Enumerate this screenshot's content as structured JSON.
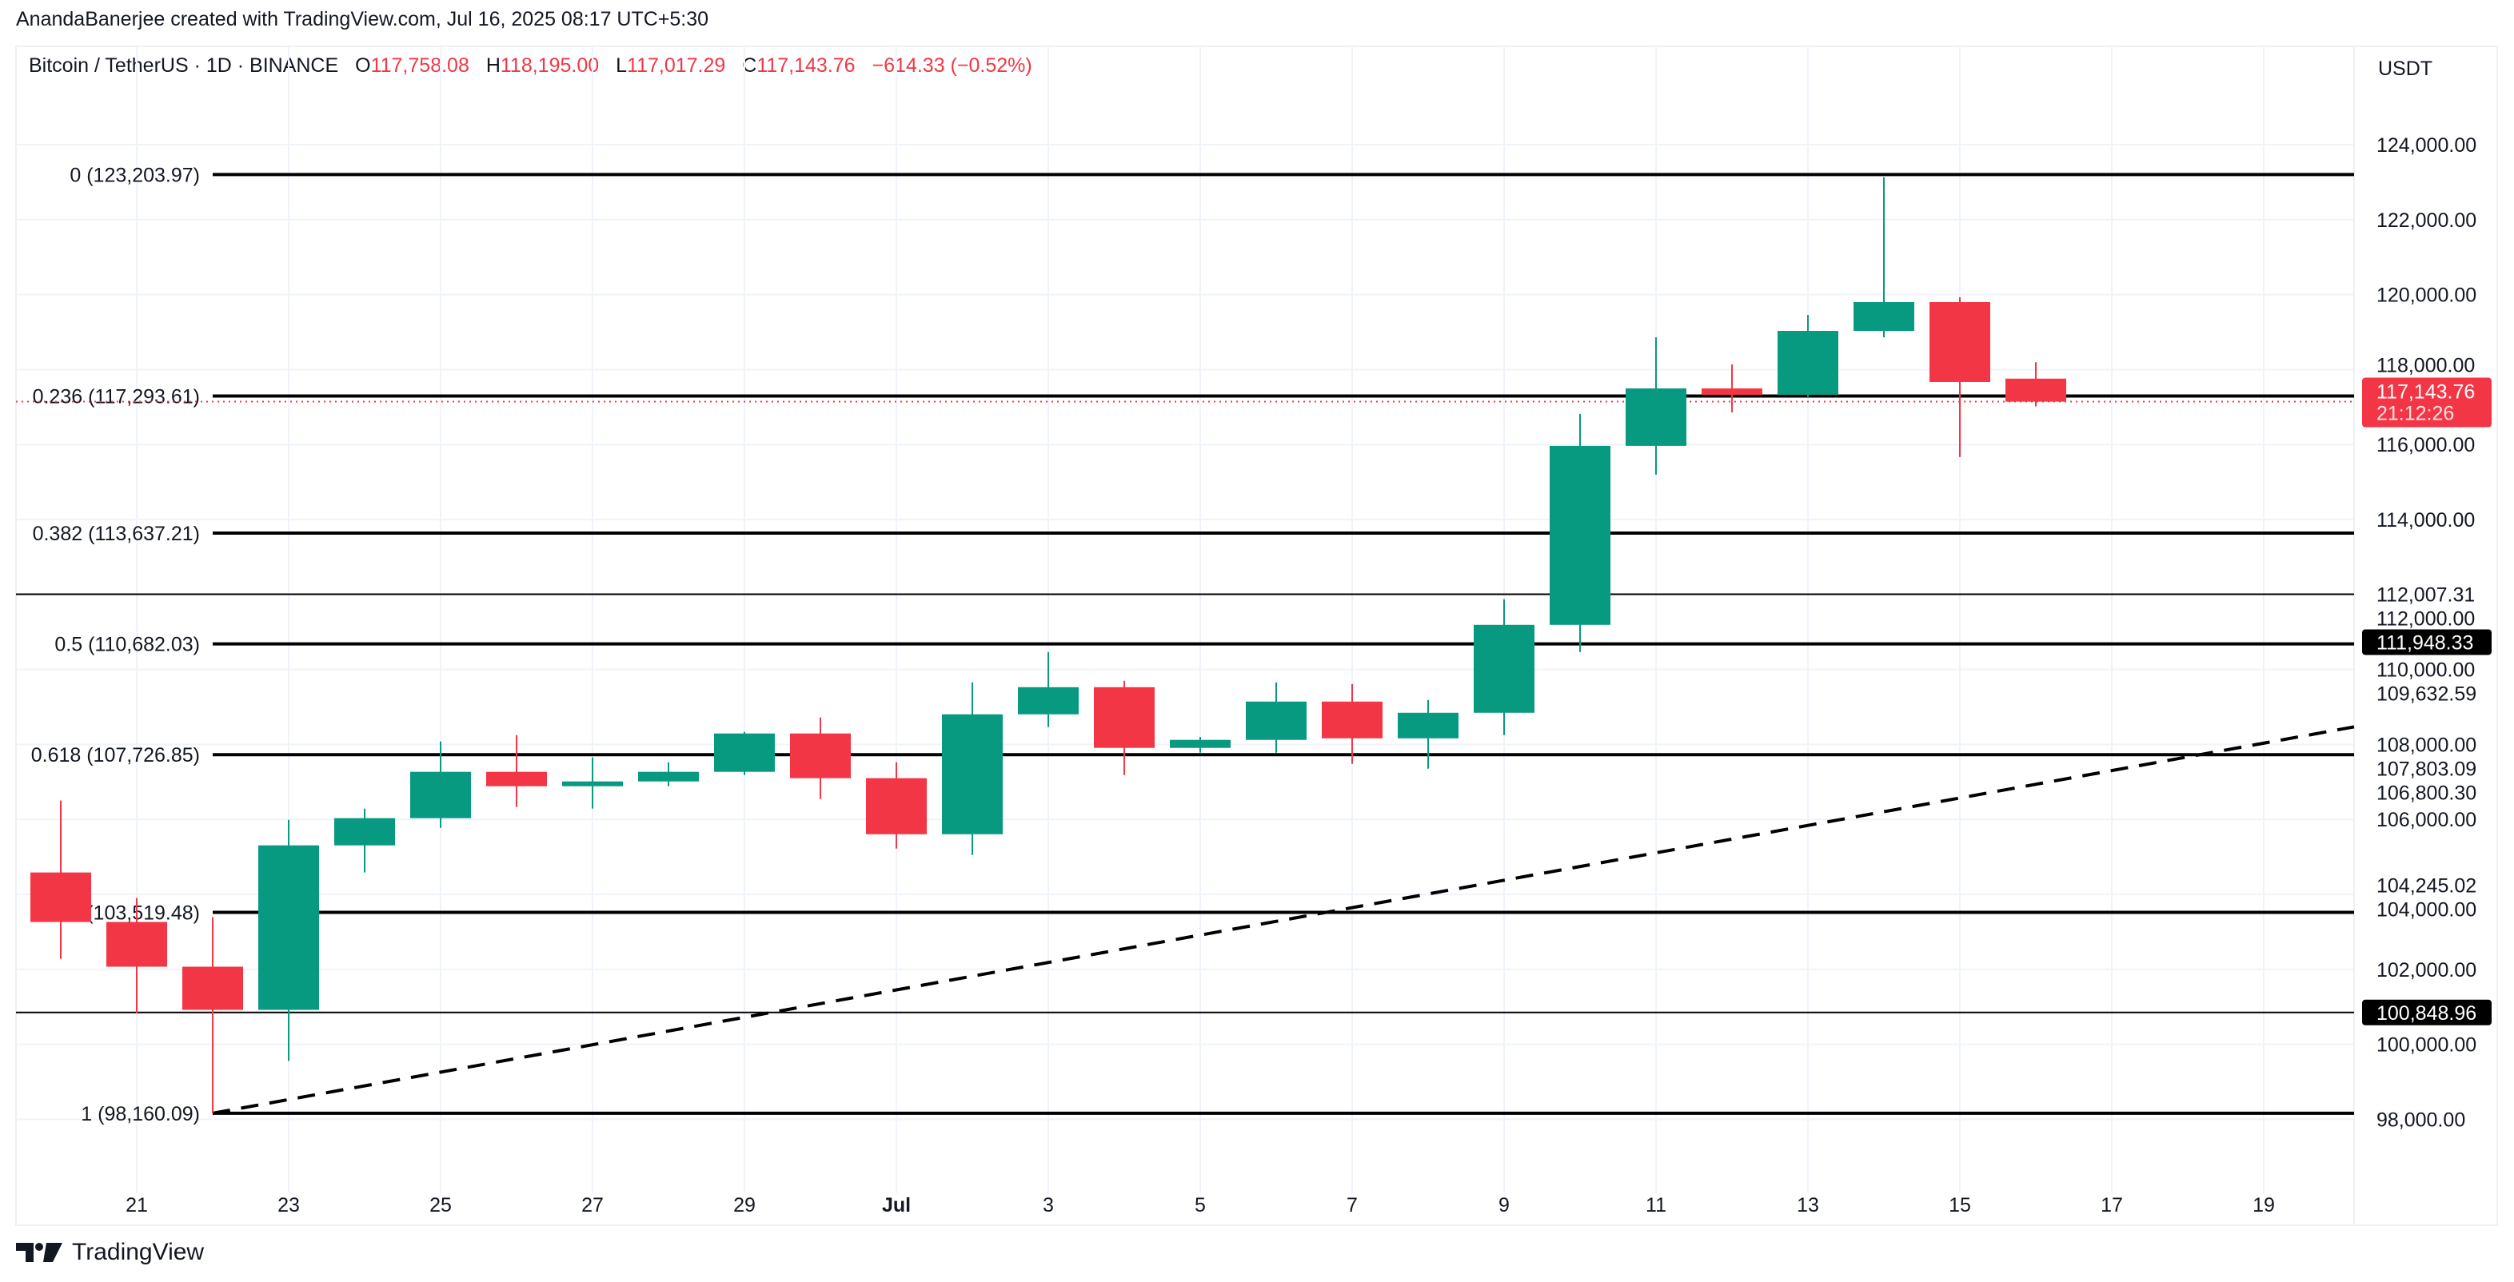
{
  "credit": "AnandaBanerjee created with TradingView.com, Jul 16, 2025 08:17 UTC+5:30",
  "legend": {
    "symbol": "Bitcoin / TetherUS · 1D · BINANCE",
    "open_label": "O",
    "open": "117,758.08",
    "high_label": "H",
    "high": "118,195.00",
    "low_label": "L",
    "low": "117,017.29",
    "close_label": "C",
    "close": "117,143.76",
    "change": "−614.33 (−0.52%)"
  },
  "currency": "USDT",
  "logo_text": "TradingView",
  "colors": {
    "up": "#089981",
    "down": "#f23645",
    "grid": "#f0f3fa",
    "line": "#000000"
  },
  "chart_data": {
    "type": "candlestick",
    "title": "",
    "ylim": [
      96500,
      126500
    ],
    "y_ticks": [
      98000,
      100000,
      102000,
      104000,
      106000,
      108000,
      110000,
      112000,
      114000,
      116000,
      118000,
      120000,
      122000,
      124000
    ],
    "x_ticks": [
      {
        "date": "2025-06-21",
        "label": "21"
      },
      {
        "date": "2025-06-23",
        "label": "23"
      },
      {
        "date": "2025-06-25",
        "label": "25"
      },
      {
        "date": "2025-06-27",
        "label": "27"
      },
      {
        "date": "2025-06-29",
        "label": "29"
      },
      {
        "date": "2025-07-01",
        "label": "Jul"
      },
      {
        "date": "2025-07-03",
        "label": "3"
      },
      {
        "date": "2025-07-05",
        "label": "5"
      },
      {
        "date": "2025-07-07",
        "label": "7"
      },
      {
        "date": "2025-07-09",
        "label": "9"
      },
      {
        "date": "2025-07-11",
        "label": "11"
      },
      {
        "date": "2025-07-13",
        "label": "13"
      },
      {
        "date": "2025-07-15",
        "label": "15"
      },
      {
        "date": "2025-07-17",
        "label": "17"
      },
      {
        "date": "2025-07-19",
        "label": "19"
      }
    ],
    "candles_columns": [
      "date",
      "open",
      "high",
      "low",
      "close"
    ],
    "candles": [
      [
        "2025-06-20",
        104584,
        106502,
        102282,
        103263
      ],
      [
        "2025-06-21",
        103263,
        103903,
        100831,
        102070
      ],
      [
        "2025-06-22",
        102070,
        103391,
        98160,
        100919
      ],
      [
        "2025-06-23",
        100919,
        105989,
        99555,
        105307
      ],
      [
        "2025-06-24",
        105307,
        106289,
        104584,
        106033
      ],
      [
        "2025-06-25",
        106033,
        108079,
        105775,
        107269
      ],
      [
        "2025-06-26",
        107269,
        108249,
        106331,
        106885
      ],
      [
        "2025-06-27",
        106885,
        107652,
        106289,
        107013
      ],
      [
        "2025-06-28",
        107013,
        107524,
        106885,
        107269
      ],
      [
        "2025-06-29",
        107269,
        108334,
        107184,
        108292
      ],
      [
        "2025-06-30",
        108292,
        108718,
        106544,
        107100
      ],
      [
        "2025-07-01",
        107100,
        107524,
        105222,
        105604
      ],
      [
        "2025-07-02",
        105604,
        109655,
        105050,
        108803
      ],
      [
        "2025-07-03",
        108803,
        110465,
        108462,
        109527
      ],
      [
        "2025-07-04",
        109527,
        109697,
        107183,
        107908
      ],
      [
        "2025-07-05",
        107908,
        108200,
        107780,
        108121
      ],
      [
        "2025-07-06",
        108121,
        109655,
        107780,
        109143
      ],
      [
        "2025-07-07",
        109143,
        109612,
        107482,
        108163
      ],
      [
        "2025-07-08",
        108163,
        109186,
        107354,
        108845
      ],
      [
        "2025-07-09",
        108845,
        111872,
        108248,
        111190
      ],
      [
        "2025-07-10",
        111190,
        116817,
        110465,
        115964
      ],
      [
        "2025-07-11",
        115964,
        118862,
        115197,
        117498
      ],
      [
        "2025-07-12",
        117498,
        118138,
        116859,
        117327
      ],
      [
        "2025-07-13",
        117327,
        119459,
        117241,
        119032
      ],
      [
        "2025-07-14",
        119032,
        123130,
        118862,
        119800
      ],
      [
        "2025-07-15",
        119800,
        119928,
        115666,
        117668
      ],
      [
        "2025-07-16",
        117758.08,
        118195.0,
        117017.29,
        117143.76
      ]
    ],
    "fib_retracement": {
      "start_date": "2025-06-22",
      "levels": [
        {
          "label": "0 (123,203.97)",
          "price": 123203.97
        },
        {
          "label": "0.236 (117,293.61)",
          "price": 117293.61
        },
        {
          "label": "0.382 (113,637.21)",
          "price": 113637.21
        },
        {
          "label": "0.5 (110,682.03)",
          "price": 110682.03
        },
        {
          "label": "0.618 (107,726.85)",
          "price": 107726.85
        },
        {
          "label": "0.786 (103,519.48)",
          "price": 103519.48
        },
        {
          "label": "1 (98,160.09)",
          "price": 98160.09
        }
      ]
    },
    "horizontal_lines": [
      {
        "price": 112007.31,
        "label": "112,007.31",
        "style": "plain"
      },
      {
        "price": 100848.96,
        "label": "100,848.96",
        "style": "badge"
      }
    ],
    "trendline": {
      "style": "dashed",
      "points": [
        {
          "date": "2025-06-22",
          "price": 98160.09
        },
        {
          "date": "2025-07-18",
          "price": 107668
        }
      ]
    },
    "last_price": {
      "price": 117143.76,
      "label": "117,143.76",
      "countdown": "21:12:26"
    },
    "axis_labels_extra": [
      {
        "price": 111948.33,
        "label": "111,948.33",
        "style": "badge"
      },
      {
        "price": 109632.59,
        "label": "109,632.59",
        "style": "plain"
      },
      {
        "price": 107803.09,
        "label": "107,803.09",
        "style": "plain"
      },
      {
        "price": 106800.3,
        "label": "106,800.30",
        "style": "plain"
      },
      {
        "price": 104245.02,
        "label": "104,245.02",
        "style": "plain"
      }
    ]
  }
}
